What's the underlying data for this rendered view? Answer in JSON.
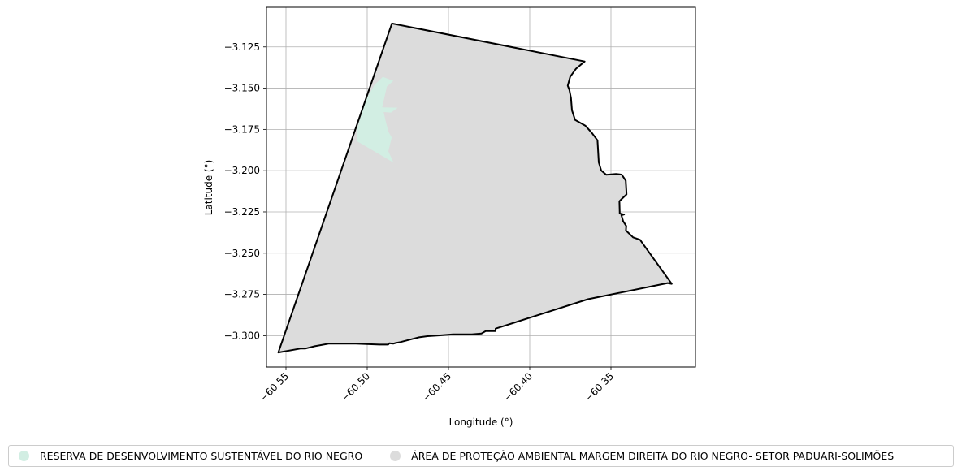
{
  "chart_data": {
    "type": "map",
    "xlabel": "Longitude (°)",
    "ylabel": "Latitude (°)",
    "xlim": [
      -60.562,
      -60.298
    ],
    "ylim": [
      -3.319,
      -3.101
    ],
    "x_ticks": [
      -60.55,
      -60.5,
      -60.45,
      -60.4,
      -60.35
    ],
    "x_tick_labels": [
      "−60.55",
      "−60.50",
      "−60.45",
      "−60.40",
      "−60.35"
    ],
    "y_ticks": [
      -3.125,
      -3.15,
      -3.175,
      -3.2,
      -3.225,
      -3.25,
      -3.275,
      -3.3
    ],
    "y_tick_labels": [
      "−3.125",
      "−3.150",
      "−3.175",
      "−3.200",
      "−3.225",
      "−3.250",
      "−3.275",
      "−3.300"
    ],
    "grid": true,
    "legend_position": "bottom",
    "regions": [
      {
        "name": "RESERVA DE DESENVOLVIMENTO SUSTENTÁVEL DO RIO NEGRO",
        "color": "#d2eee3",
        "outline": false,
        "lonlat": [
          [
            -60.4904,
            -3.1431
          ],
          [
            -60.4839,
            -3.1456
          ],
          [
            -60.4879,
            -3.149
          ],
          [
            -60.4908,
            -3.1617
          ],
          [
            -60.4812,
            -3.1618
          ],
          [
            -60.4853,
            -3.1648
          ],
          [
            -60.4899,
            -3.1645
          ],
          [
            -60.4885,
            -3.1705
          ],
          [
            -60.4869,
            -3.1765
          ],
          [
            -60.4849,
            -3.1799
          ],
          [
            -60.487,
            -3.1882
          ],
          [
            -60.4838,
            -3.1951
          ],
          [
            -60.506,
            -3.1823
          ],
          [
            -60.5064,
            -3.1754
          ],
          [
            -60.5013,
            -3.1577
          ],
          [
            -60.4954,
            -3.1479
          ]
        ]
      },
      {
        "name": "ÁREA DE PROTEÇÃO AMBIENTAL MARGEM DIREITA DO RIO NEGRO- SETOR PADUARI-SOLIMÕES",
        "color": "#dcdcdc",
        "outline": true,
        "lonlat": [
          [
            -60.4848,
            -3.1108
          ],
          [
            -60.3662,
            -3.1338
          ],
          [
            -60.3715,
            -3.1382
          ],
          [
            -60.3751,
            -3.1431
          ],
          [
            -60.3766,
            -3.1485
          ],
          [
            -60.3756,
            -3.151
          ],
          [
            -60.3746,
            -3.156
          ],
          [
            -60.374,
            -3.1634
          ],
          [
            -60.3721,
            -3.1692
          ],
          [
            -60.3658,
            -3.1727
          ],
          [
            -60.3617,
            -3.1772
          ],
          [
            -60.3583,
            -3.1816
          ],
          [
            -60.3575,
            -3.195
          ],
          [
            -60.356,
            -3.1999
          ],
          [
            -60.3529,
            -3.2025
          ],
          [
            -60.3469,
            -3.202
          ],
          [
            -60.3434,
            -3.2024
          ],
          [
            -60.3409,
            -3.206
          ],
          [
            -60.3404,
            -3.2144
          ],
          [
            -60.3448,
            -3.2185
          ],
          [
            -60.3446,
            -3.226
          ],
          [
            -60.3419,
            -3.2266
          ],
          [
            -60.3436,
            -3.227
          ],
          [
            -60.3425,
            -3.2306
          ],
          [
            -60.3406,
            -3.2335
          ],
          [
            -60.3408,
            -3.2363
          ],
          [
            -60.3364,
            -3.2404
          ],
          [
            -60.3321,
            -3.2419
          ],
          [
            -60.3126,
            -3.2686
          ],
          [
            -60.3151,
            -3.2681
          ],
          [
            -60.3642,
            -3.2779
          ],
          [
            -60.421,
            -3.2957
          ],
          [
            -60.421,
            -3.2972
          ],
          [
            -60.4271,
            -3.2972
          ],
          [
            -60.4297,
            -3.2987
          ],
          [
            -60.4356,
            -3.2992
          ],
          [
            -60.4402,
            -3.2992
          ],
          [
            -60.4472,
            -3.2992
          ],
          [
            -60.4552,
            -3.2998
          ],
          [
            -60.4629,
            -3.3003
          ],
          [
            -60.4681,
            -3.301
          ],
          [
            -60.4719,
            -3.3019
          ],
          [
            -60.4796,
            -3.3039
          ],
          [
            -60.4827,
            -3.3045
          ],
          [
            -60.484,
            -3.3049
          ],
          [
            -60.4864,
            -3.3046
          ],
          [
            -60.4871,
            -3.3054
          ],
          [
            -60.4925,
            -3.3054
          ],
          [
            -60.507,
            -3.3049
          ],
          [
            -60.5238,
            -3.3049
          ],
          [
            -60.5323,
            -3.3064
          ],
          [
            -60.5379,
            -3.3078
          ],
          [
            -60.5408,
            -3.3078
          ],
          [
            -60.5547,
            -3.3102
          ]
        ]
      }
    ]
  }
}
